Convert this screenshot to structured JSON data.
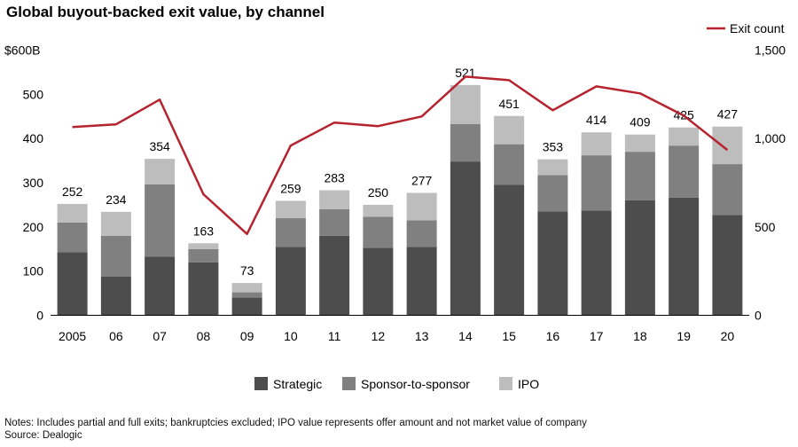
{
  "page": {
    "title": "Global buyout-backed exit value, by channel",
    "notes": "Notes: Includes partial and full exits; bankruptcies excluded; IPO value represents offer amount and not market value of company",
    "source": "Source: Dealogic"
  },
  "colors": {
    "strategic": "#4d4d4d",
    "sponsor": "#808080",
    "ipo": "#bdbdbd",
    "line": "#b5232f"
  },
  "chart_data": {
    "type": "bar",
    "stacked": true,
    "title": "Global buyout-backed exit value, by channel",
    "categories": [
      "2005",
      "06",
      "07",
      "08",
      "09",
      "10",
      "11",
      "12",
      "13",
      "14",
      "15",
      "16",
      "17",
      "18",
      "19",
      "20"
    ],
    "series": [
      {
        "name": "Strategic",
        "values": [
          143,
          88,
          133,
          120,
          40,
          155,
          180,
          153,
          155,
          348,
          295,
          235,
          237,
          260,
          266,
          227
        ]
      },
      {
        "name": "Sponsor-to-sponsor",
        "values": [
          67,
          92,
          163,
          30,
          12,
          65,
          60,
          70,
          60,
          85,
          92,
          82,
          125,
          110,
          118,
          115
        ]
      },
      {
        "name": "IPO",
        "values": [
          42,
          54,
          58,
          13,
          21,
          39,
          43,
          27,
          62,
          88,
          64,
          36,
          52,
          39,
          41,
          85
        ]
      }
    ],
    "totals": [
      252,
      234,
      354,
      163,
      73,
      259,
      283,
      250,
      277,
      521,
      451,
      353,
      414,
      409,
      425,
      427
    ],
    "line_series": {
      "name": "Exit count",
      "axis": "right",
      "values": [
        1065,
        1080,
        1220,
        685,
        460,
        960,
        1090,
        1070,
        1125,
        1350,
        1330,
        1160,
        1295,
        1255,
        1130,
        935
      ]
    },
    "y_left": {
      "min": 0,
      "max": 600,
      "ticks": [
        0,
        100,
        200,
        300,
        400,
        500,
        600
      ],
      "tick_labels": [
        "0",
        "100",
        "200",
        "300",
        "400",
        "500",
        "$600B"
      ]
    },
    "y_right": {
      "min": 0,
      "max": 1500,
      "ticks": [
        0,
        500,
        1000,
        1500
      ],
      "tick_labels": [
        "0",
        "500",
        "1,000",
        "1,500"
      ]
    },
    "legend": [
      "Strategic",
      "Sponsor-to-sponsor",
      "IPO"
    ],
    "line_legend": "Exit count",
    "legend_position": "bottom"
  }
}
